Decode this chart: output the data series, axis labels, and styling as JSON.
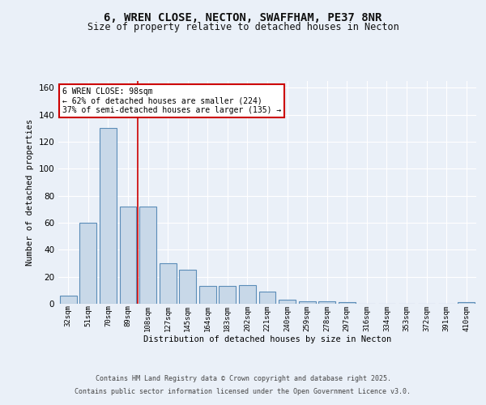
{
  "title1": "6, WREN CLOSE, NECTON, SWAFFHAM, PE37 8NR",
  "title2": "Size of property relative to detached houses in Necton",
  "xlabel": "Distribution of detached houses by size in Necton",
  "ylabel": "Number of detached properties",
  "categories": [
    "32sqm",
    "51sqm",
    "70sqm",
    "89sqm",
    "108sqm",
    "127sqm",
    "145sqm",
    "164sqm",
    "183sqm",
    "202sqm",
    "221sqm",
    "240sqm",
    "259sqm",
    "278sqm",
    "297sqm",
    "316sqm",
    "334sqm",
    "353sqm",
    "372sqm",
    "391sqm",
    "410sqm"
  ],
  "values": [
    6,
    60,
    130,
    72,
    72,
    30,
    25,
    13,
    13,
    14,
    9,
    3,
    2,
    2,
    1,
    0,
    0,
    0,
    0,
    0,
    1
  ],
  "bar_color": "#c8d8e8",
  "bar_edge_color": "#5b8db8",
  "vline_x": 3.5,
  "vline_color": "#cc0000",
  "annotation_text": "6 WREN CLOSE: 98sqm\n← 62% of detached houses are smaller (224)\n37% of semi-detached houses are larger (135) →",
  "annotation_box_color": "#ffffff",
  "annotation_box_edge": "#cc0000",
  "ylim": [
    0,
    165
  ],
  "yticks": [
    0,
    20,
    40,
    60,
    80,
    100,
    120,
    140,
    160
  ],
  "footer1": "Contains HM Land Registry data © Crown copyright and database right 2025.",
  "footer2": "Contains public sector information licensed under the Open Government Licence v3.0.",
  "bg_color": "#eaf0f8",
  "plot_bg_color": "#eaf0f8"
}
